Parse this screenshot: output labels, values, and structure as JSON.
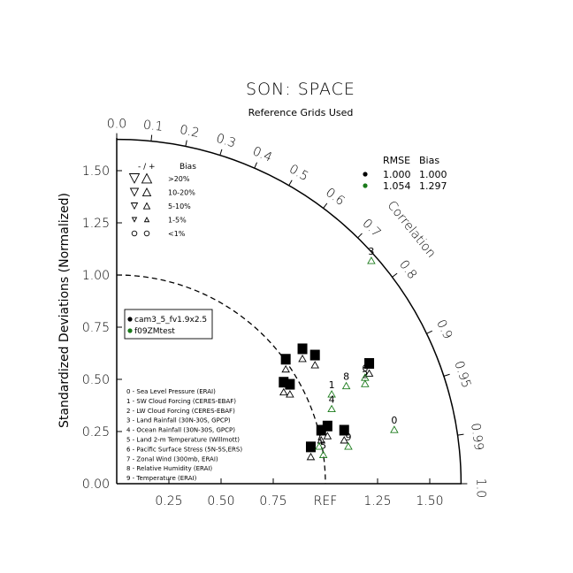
{
  "title": "SON: SPACE",
  "subtitle": "Reference Grids Used",
  "chart_data": {
    "type": "scatter",
    "diagram": "taylor",
    "ylabel": "Standardized Deviations (Normalized)",
    "correlation_label": "Correlation",
    "ref_label": "REF",
    "x_ticks": [
      "0.25",
      "0.50",
      "0.75",
      "1.25",
      "1.50"
    ],
    "y_ticks": [
      "0.00",
      "0.25",
      "0.50",
      "0.75",
      "1.00",
      "1.25",
      "1.50"
    ],
    "corr_ticks": [
      "0.0",
      "0.1",
      "0.2",
      "0.3",
      "0.4",
      "0.5",
      "0.6",
      "0.7",
      "0.8",
      "0.9",
      "0.95",
      "0.99",
      "1.0"
    ],
    "corr_tick_values": [
      0.0,
      0.1,
      0.2,
      0.3,
      0.4,
      0.5,
      0.6,
      0.7,
      0.8,
      0.9,
      0.95,
      0.99,
      1.0
    ],
    "max_std": 1.65,
    "ref_std": 1.0,
    "bias_legend": {
      "header_sign": "-  /  +",
      "header_bias": "Bias",
      "rows": [
        {
          "label": ">20%"
        },
        {
          "label": "10-20%"
        },
        {
          "label": "5-10%"
        },
        {
          "label": "1-5%"
        },
        {
          "label": "<1%"
        }
      ]
    },
    "rmse_table": {
      "headers": [
        "RMSE",
        "Bias"
      ],
      "rows": [
        {
          "color": "#000000",
          "rmse": "1.000",
          "bias": "1.000"
        },
        {
          "color": "#1a7a1a",
          "rmse": "1.054",
          "bias": "1.297"
        }
      ]
    },
    "series": [
      {
        "name": "cam3_5_fv1.9x2.5",
        "color": "#000000",
        "points": [
          {
            "label": "0",
            "x": 1.01,
            "y": 0.27
          },
          {
            "label": "1",
            "x": 0.81,
            "y": 0.59
          },
          {
            "label": "2",
            "x": 0.95,
            "y": 0.61
          },
          {
            "label": "3",
            "x": 0.89,
            "y": 0.64
          },
          {
            "label": "4",
            "x": 0.8,
            "y": 0.48
          },
          {
            "label": "5",
            "x": 0.93,
            "y": 0.17
          },
          {
            "label": "6",
            "x": 1.21,
            "y": 0.57
          },
          {
            "label": "7",
            "x": 0.98,
            "y": 0.25
          },
          {
            "label": "8",
            "x": 0.83,
            "y": 0.47
          },
          {
            "label": "9",
            "x": 1.09,
            "y": 0.25
          }
        ]
      },
      {
        "name": "f09ZMtest",
        "color": "#1a7a1a",
        "points": [
          {
            "label": "0",
            "x": 1.33,
            "y": 0.3
          },
          {
            "label": "1",
            "x": 1.03,
            "y": 0.47
          },
          {
            "label": "2",
            "x": 1.19,
            "y": 0.52
          },
          {
            "label": "3",
            "x": 1.22,
            "y": 1.11
          },
          {
            "label": "4",
            "x": 1.03,
            "y": 0.4
          },
          {
            "label": "5",
            "x": 0.99,
            "y": 0.18
          },
          {
            "label": "6",
            "x": 1.19,
            "y": 0.55
          },
          {
            "label": "7",
            "x": 0.97,
            "y": 0.22
          },
          {
            "label": "8",
            "x": 1.1,
            "y": 0.51
          },
          {
            "label": "9",
            "x": 1.11,
            "y": 0.22
          }
        ]
      }
    ],
    "variables": [
      "0 - Sea Level Pressure (ERAI)",
      "1 - SW Cloud Forcing (CERES-EBAF)",
      "2 - LW Cloud Forcing (CERES-EBAF)",
      "3 - Land Rainfall (30N-30S, GPCP)",
      "4 - Ocean Rainfall (30N-30S, GPCP)",
      "5 - Land 2-m Temperature (Willmott)",
      "6 - Pacific Surface Stress (5N-5S,ERS)",
      "7 - Zonal Wind (300mb, ERAI)",
      "8 - Relative Humidity (ERAI)",
      "9 - Temperature (ERAI)"
    ]
  }
}
